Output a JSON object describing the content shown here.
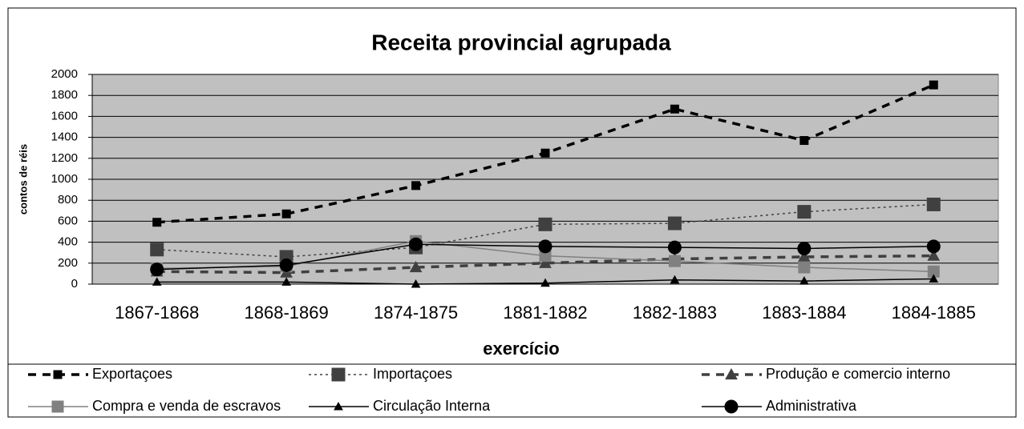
{
  "chart_data": {
    "type": "line",
    "title": "Receita provincial agrupada",
    "xlabel": "exercício",
    "ylabel": "contos de réis",
    "categories": [
      "1867-1868",
      "1868-1869",
      "1874-1875",
      "1881-1882",
      "1882-1883",
      "1883-1884",
      "1884-1885"
    ],
    "ylim": [
      0,
      2000
    ],
    "yticks": [
      0,
      200,
      400,
      600,
      800,
      1000,
      1200,
      1400,
      1600,
      1800,
      2000
    ],
    "grid": true,
    "legend": "bottom",
    "series": [
      {
        "name": "Exportaçoes",
        "color": "#000000",
        "line_style": "dashed",
        "marker": "square",
        "values": [
          590,
          670,
          940,
          1250,
          1670,
          1370,
          1900
        ]
      },
      {
        "name": "Importaçoes",
        "color": "#404040",
        "line_style": "dotted",
        "marker": "square",
        "values": [
          330,
          260,
          350,
          570,
          580,
          690,
          760
        ]
      },
      {
        "name": "Produção e comercio interno",
        "color": "#404040",
        "line_style": "dashed",
        "marker": "triangle",
        "values": [
          120,
          110,
          160,
          200,
          240,
          260,
          270
        ]
      },
      {
        "name": "Compra e venda de escravos",
        "color": "#808080",
        "line_style": "solid",
        "marker": "square",
        "values": [
          150,
          170,
          410,
          270,
          220,
          160,
          120
        ]
      },
      {
        "name": "Circulação Interna",
        "color": "#000000",
        "line_style": "solid",
        "marker": "triangle",
        "values": [
          20,
          20,
          0,
          10,
          40,
          30,
          50
        ]
      },
      {
        "name": "Administrativa",
        "color": "#000000",
        "line_style": "solid",
        "marker": "circle",
        "values": [
          140,
          180,
          380,
          360,
          350,
          340,
          360
        ]
      }
    ]
  }
}
